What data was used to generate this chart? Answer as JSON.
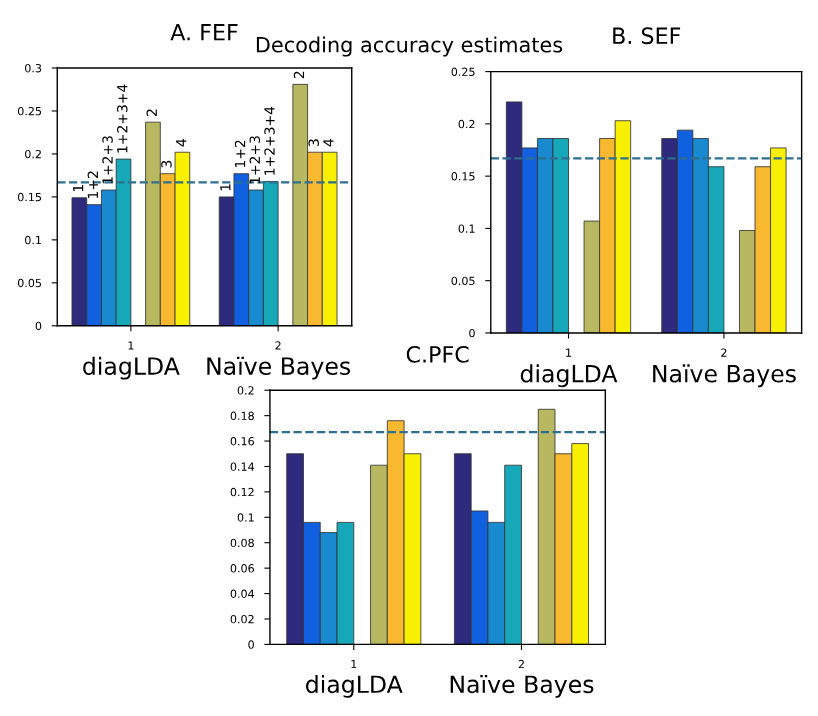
{
  "chart_data": [
    {
      "type": "bar",
      "title": "A. FEF",
      "subtitle": "Decoding accuracy estimates",
      "categories": [
        "1",
        "2"
      ],
      "series": [
        {
          "name": "1",
          "color": "#2e2a7e",
          "values": [
            0.149,
            0.15
          ]
        },
        {
          "name": "1+2",
          "color": "#1060e0",
          "values": [
            0.141,
            0.177
          ]
        },
        {
          "name": "1+2+3",
          "color": "#1a8ad0",
          "values": [
            0.158,
            0.158
          ]
        },
        {
          "name": "1+2+3+4",
          "color": "#16a8b8",
          "values": [
            0.194,
            0.168
          ]
        },
        {
          "color": "#ffffff",
          "values": [
            0,
            0
          ]
        },
        {
          "name": "2",
          "color": "#b8b860",
          "values": [
            0.237,
            0.281
          ]
        },
        {
          "name": "3",
          "color": "#f8b830",
          "values": [
            0.177,
            0.202
          ]
        },
        {
          "name": "4",
          "color": "#f8f000",
          "values": [
            0.202,
            0.202
          ]
        }
      ],
      "ylim": [
        0,
        0.3
      ],
      "yticks": [
        0,
        0.05,
        0.1,
        0.15,
        0.2,
        0.25,
        0.3
      ],
      "ref_lines": [
        {
          "axis": "y",
          "value": 0.167,
          "color": "#2e6e8e",
          "line_style": "dashed"
        }
      ],
      "annotations": [
        "diagLDA",
        "Naïve Bayes"
      ],
      "legend": false,
      "grid": false
    },
    {
      "type": "bar",
      "title": "B. SEF",
      "categories": [
        "1",
        "2"
      ],
      "series": [
        {
          "color": "#2e2a7e",
          "values": [
            0.221,
            0.186
          ]
        },
        {
          "color": "#1060e0",
          "values": [
            0.177,
            0.194
          ]
        },
        {
          "color": "#1a8ad0",
          "values": [
            0.186,
            0.186
          ]
        },
        {
          "color": "#16a8b8",
          "values": [
            0.186,
            0.159
          ]
        },
        {
          "color": "#ffffff",
          "values": [
            0,
            0
          ]
        },
        {
          "color": "#b8b860",
          "values": [
            0.107,
            0.098
          ]
        },
        {
          "color": "#f8b830",
          "values": [
            0.186,
            0.159
          ]
        },
        {
          "color": "#f8f000",
          "values": [
            0.203,
            0.177
          ]
        }
      ],
      "ylim": [
        0,
        0.25
      ],
      "yticks": [
        0,
        0.05,
        0.1,
        0.15,
        0.2,
        0.25
      ],
      "ref_lines": [
        {
          "axis": "y",
          "value": 0.167,
          "color": "#2e6e8e",
          "line_style": "dashed"
        }
      ],
      "annotations": [
        "diagLDA",
        "Naïve Bayes"
      ],
      "legend": false,
      "grid": false
    },
    {
      "type": "bar",
      "title": "C.PFC",
      "categories": [
        "1",
        "2"
      ],
      "series": [
        {
          "color": "#2e2a7e",
          "values": [
            0.15,
            0.15
          ]
        },
        {
          "color": "#1060e0",
          "values": [
            0.096,
            0.105
          ]
        },
        {
          "color": "#1a8ad0",
          "values": [
            0.088,
            0.096
          ]
        },
        {
          "color": "#16a8b8",
          "values": [
            0.096,
            0.141
          ]
        },
        {
          "color": "#ffffff",
          "values": [
            0,
            0
          ]
        },
        {
          "color": "#b8b860",
          "values": [
            0.141,
            0.185
          ]
        },
        {
          "color": "#f8b830",
          "values": [
            0.176,
            0.15
          ]
        },
        {
          "color": "#f8f000",
          "values": [
            0.15,
            0.158
          ]
        }
      ],
      "ylim": [
        0,
        0.2
      ],
      "yticks": [
        0,
        0.02,
        0.04,
        0.06,
        0.08,
        0.1,
        0.12,
        0.14,
        0.16,
        0.18,
        0.2
      ],
      "ref_lines": [
        {
          "axis": "y",
          "value": 0.167,
          "color": "#2e6e8e",
          "line_style": "dashed"
        }
      ],
      "annotations": [
        "diagLDA",
        "Naïve Bayes"
      ],
      "legend": false,
      "grid": false
    }
  ]
}
